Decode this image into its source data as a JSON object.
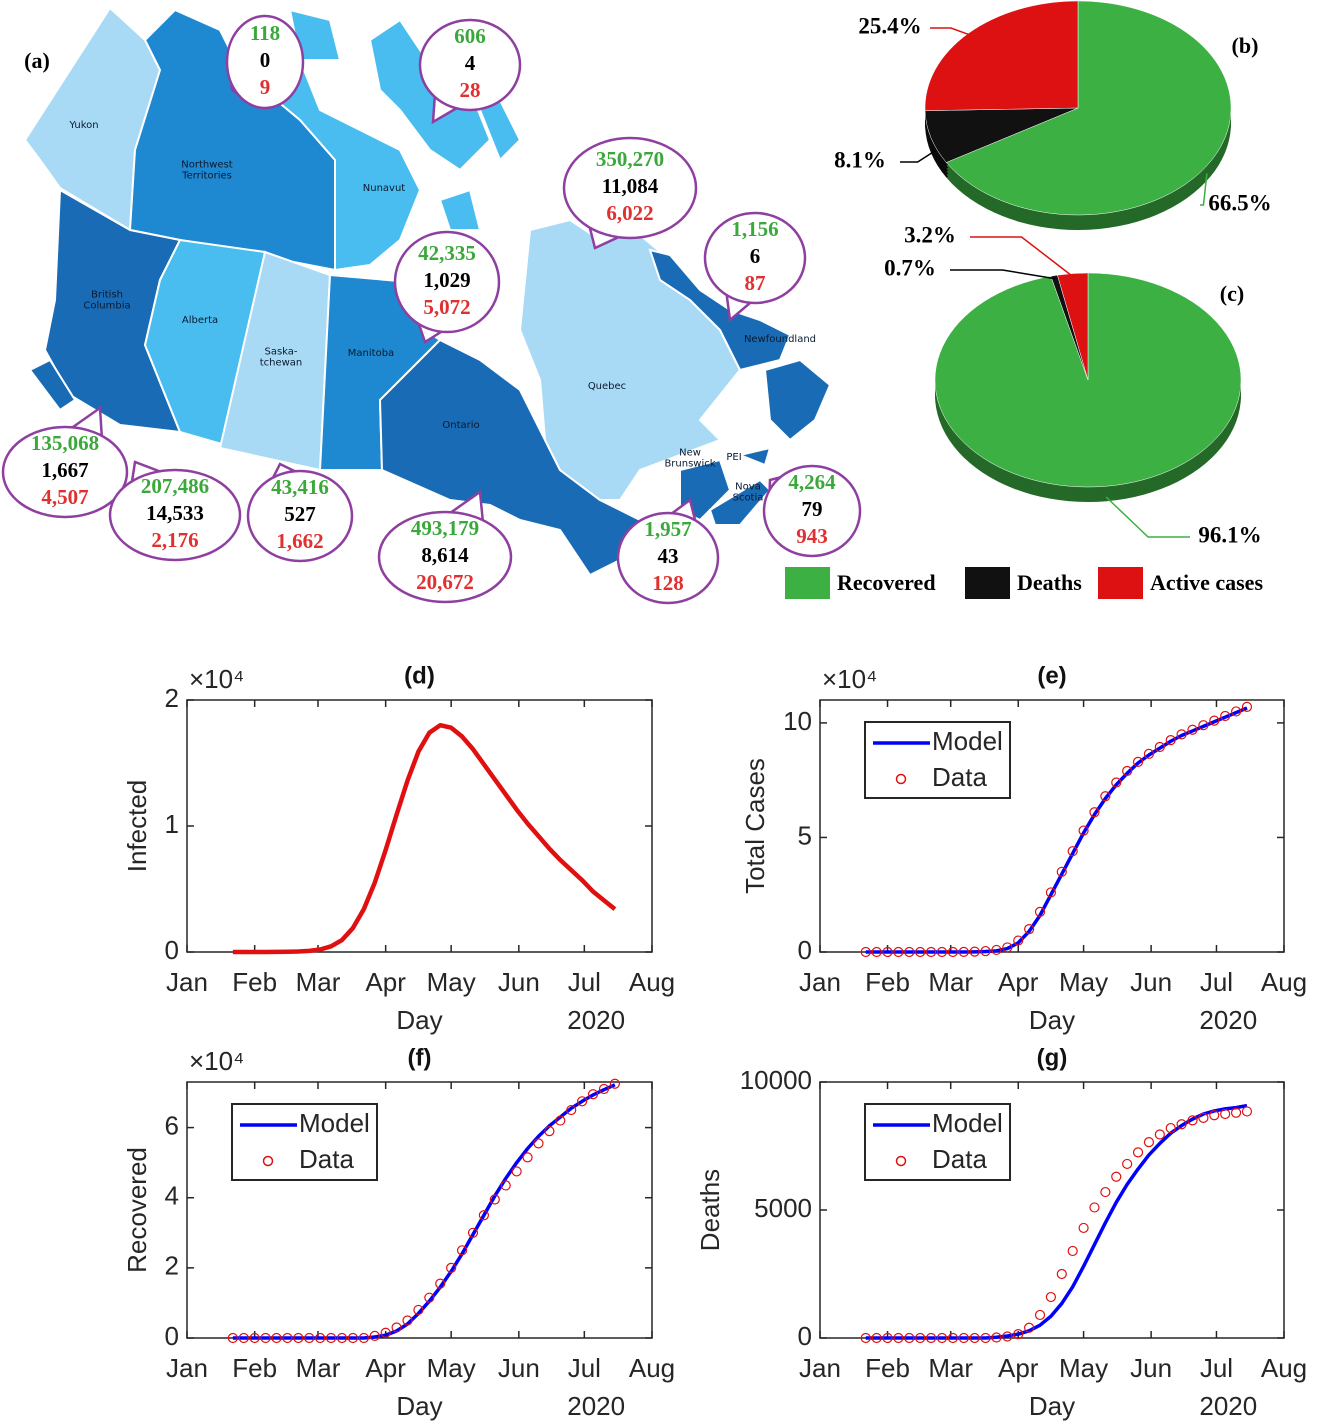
{
  "map": {
    "label": "(a)",
    "regions": [
      {
        "label": [
          "Yukon"
        ]
      },
      {
        "label": [
          "Northwest",
          "Territories"
        ]
      },
      {
        "label": [
          "Nunavut"
        ]
      },
      {
        "label": [
          "British",
          "Columbia"
        ]
      },
      {
        "label": [
          "Alberta"
        ]
      },
      {
        "label": [
          "Saska-",
          "tchewan"
        ]
      },
      {
        "label": [
          "Manitoba"
        ]
      },
      {
        "label": [
          "Ontario"
        ]
      },
      {
        "label": [
          "Quebec"
        ]
      },
      {
        "label": [
          "Newfoundland"
        ]
      },
      {
        "label": [
          "New",
          "Brunswick"
        ]
      },
      {
        "label": [
          "PEI"
        ]
      },
      {
        "label": [
          "Nova",
          "Scotia"
        ]
      }
    ],
    "callouts": [
      [
        "118",
        "0",
        "9"
      ],
      [
        "606",
        "4",
        "28"
      ],
      [
        "350,270",
        "11,084",
        "6,022"
      ],
      [
        "42,335",
        "1,029",
        "5,072"
      ],
      [
        "1,156",
        "6",
        "87"
      ],
      [
        "135,068",
        "1,667",
        "4,507"
      ],
      [
        "207,486",
        "14,533",
        "2,176"
      ],
      [
        "43,416",
        "527",
        "1,662"
      ],
      [
        "493,179",
        "8,614",
        "20,672"
      ],
      [
        "1,957",
        "43",
        "128"
      ],
      [
        "4,264",
        "79",
        "943"
      ]
    ]
  },
  "chart_data": [
    {
      "type": "pie",
      "title": "(b)",
      "categories": [
        "Recovered",
        "Deaths",
        "Active cases"
      ],
      "values": [
        66.5,
        8.1,
        25.4
      ],
      "value_labels": [
        "66.5%",
        "8.1%",
        "25.4%"
      ],
      "colors": [
        "#3cb043",
        "#111111",
        "#dd1111"
      ]
    },
    {
      "type": "pie",
      "title": "(c)",
      "values": [
        96.1,
        0.7,
        3.2
      ],
      "value_labels": [
        "96.1%",
        "0.7%",
        "3.2%"
      ],
      "colors": [
        "#3cb043",
        "#111111",
        "#dd1111"
      ]
    },
    {
      "type": "line",
      "title": "(d)",
      "x_label": "Day",
      "x_sublabel": "2020",
      "y_label": "Infected",
      "y_multiplier": "×10⁴",
      "xlim": [
        0,
        213
      ],
      "xticks": [
        {
          "value": 0,
          "label": "Jan"
        },
        {
          "value": 31,
          "label": "Feb"
        },
        {
          "value": 60,
          "label": "Mar"
        },
        {
          "value": 91,
          "label": "Apr"
        },
        {
          "value": 121,
          "label": "May"
        },
        {
          "value": 152,
          "label": "Jun"
        },
        {
          "value": 182,
          "label": "Jul"
        },
        {
          "value": 213,
          "label": "Aug"
        }
      ],
      "ylim": [
        0,
        20000
      ],
      "yticks": [
        0,
        {
          "value": 10000,
          "label": "1"
        },
        {
          "value": 20000,
          "label": "2"
        }
      ],
      "x": [
        21,
        26,
        31,
        36,
        41,
        46,
        51,
        56,
        61,
        66,
        71,
        76,
        81,
        86,
        91,
        96,
        101,
        106,
        111,
        116,
        121,
        126,
        131,
        136,
        141,
        146,
        151,
        156,
        161,
        166,
        171,
        176,
        181,
        186,
        191,
        196
      ],
      "series": [
        {
          "color": "#e01010",
          "style": "line",
          "values": [
            0,
            0,
            0,
            0,
            5,
            15,
            40,
            90,
            200,
            450,
            950,
            1900,
            3400,
            5500,
            8100,
            10900,
            13600,
            15900,
            17400,
            18000,
            17800,
            17100,
            16100,
            14900,
            13700,
            12500,
            11300,
            10200,
            9200,
            8200,
            7300,
            6500,
            5700,
            4800,
            4100,
            3400
          ]
        }
      ]
    },
    {
      "type": "line",
      "title": "(e)",
      "x_label": "Day",
      "x_sublabel": "2020",
      "y_label": "Total Cases",
      "y_multiplier": "×10⁴",
      "legend": "northwest",
      "xlim": [
        0,
        213
      ],
      "xticks": [
        {
          "value": 0,
          "label": "Jan"
        },
        {
          "value": 31,
          "label": "Feb"
        },
        {
          "value": 60,
          "label": "Mar"
        },
        {
          "value": 91,
          "label": "Apr"
        },
        {
          "value": 121,
          "label": "May"
        },
        {
          "value": 152,
          "label": "Jun"
        },
        {
          "value": 182,
          "label": "Jul"
        },
        {
          "value": 213,
          "label": "Aug"
        }
      ],
      "ylim": [
        0,
        110000
      ],
      "yticks": [
        0,
        {
          "value": 50000,
          "label": "5"
        },
        {
          "value": 100000,
          "label": "10"
        }
      ],
      "x": [
        21,
        26,
        31,
        36,
        41,
        46,
        51,
        56,
        61,
        66,
        71,
        76,
        81,
        86,
        91,
        96,
        101,
        106,
        111,
        116,
        121,
        126,
        131,
        136,
        141,
        146,
        151,
        156,
        161,
        166,
        171,
        176,
        181,
        186,
        191,
        196
      ],
      "series": [
        {
          "name": "Model",
          "color": "#0000ff",
          "style": "line",
          "values": [
            0,
            0,
            0,
            0,
            0,
            0,
            0,
            0,
            5,
            20,
            80,
            200,
            500,
            1500,
            4000,
            9000,
            16000,
            25000,
            34000,
            43000,
            52000,
            60000,
            67000,
            73000,
            78000,
            82500,
            86000,
            89000,
            92000,
            94500,
            96500,
            98500,
            100500,
            102500,
            104500,
            106500
          ]
        },
        {
          "name": "Data",
          "color": "#e01010",
          "style": "circle",
          "values": [
            0,
            0,
            0,
            0,
            0,
            0,
            0,
            0,
            10,
            40,
            150,
            400,
            900,
            2000,
            5000,
            10000,
            17500,
            26000,
            35000,
            44000,
            53000,
            61000,
            68000,
            74000,
            79000,
            83000,
            86500,
            89500,
            92500,
            95000,
            97000,
            99000,
            101000,
            103000,
            105000,
            107000
          ]
        }
      ]
    },
    {
      "type": "line",
      "title": "(f)",
      "x_label": "Day",
      "x_sublabel": "2020",
      "y_label": "Recovered",
      "y_multiplier": "×10⁴",
      "legend": "northwest",
      "xlim": [
        0,
        213
      ],
      "xticks": [
        {
          "value": 0,
          "label": "Jan"
        },
        {
          "value": 31,
          "label": "Feb"
        },
        {
          "value": 60,
          "label": "Mar"
        },
        {
          "value": 91,
          "label": "Apr"
        },
        {
          "value": 121,
          "label": "May"
        },
        {
          "value": 152,
          "label": "Jun"
        },
        {
          "value": 182,
          "label": "Jul"
        },
        {
          "value": 213,
          "label": "Aug"
        }
      ],
      "ylim": [
        0,
        73000
      ],
      "yticks": [
        0,
        {
          "value": 20000,
          "label": "2"
        },
        {
          "value": 40000,
          "label": "4"
        },
        {
          "value": 60000,
          "label": "6"
        }
      ],
      "x": [
        21,
        26,
        31,
        36,
        41,
        46,
        51,
        56,
        61,
        66,
        71,
        76,
        81,
        86,
        91,
        96,
        101,
        106,
        111,
        116,
        121,
        126,
        131,
        136,
        141,
        146,
        151,
        156,
        161,
        166,
        171,
        176,
        181,
        186,
        191,
        196
      ],
      "series": [
        {
          "name": "Model",
          "color": "#0000ff",
          "style": "line",
          "values": [
            0,
            0,
            0,
            0,
            0,
            0,
            0,
            0,
            0,
            0,
            0,
            0,
            0,
            300,
            800,
            2000,
            4000,
            7000,
            10500,
            14500,
            19000,
            24000,
            29500,
            35000,
            40500,
            45500,
            50000,
            54000,
            57500,
            60500,
            63000,
            65500,
            67500,
            69300,
            70800,
            72200
          ]
        },
        {
          "name": "Data",
          "color": "#e01010",
          "style": "circle",
          "values": [
            0,
            0,
            0,
            0,
            0,
            0,
            0,
            0,
            0,
            0,
            0,
            0,
            0,
            600,
            1500,
            3000,
            5000,
            8000,
            11500,
            15500,
            20000,
            25000,
            30000,
            35000,
            39500,
            43500,
            47500,
            51500,
            55500,
            59000,
            62000,
            65000,
            67500,
            69500,
            71000,
            72500
          ]
        }
      ]
    },
    {
      "type": "line",
      "title": "(g)",
      "x_label": "Day",
      "x_sublabel": "2020",
      "y_label": "Deaths",
      "legend": "northwest",
      "xlim": [
        0,
        213
      ],
      "xticks": [
        {
          "value": 0,
          "label": "Jan"
        },
        {
          "value": 31,
          "label": "Feb"
        },
        {
          "value": 60,
          "label": "Mar"
        },
        {
          "value": 91,
          "label": "Apr"
        },
        {
          "value": 121,
          "label": "May"
        },
        {
          "value": 152,
          "label": "Jun"
        },
        {
          "value": 182,
          "label": "Jul"
        },
        {
          "value": 213,
          "label": "Aug"
        }
      ],
      "ylim": [
        0,
        10000
      ],
      "yticks": [
        0,
        5000,
        10000
      ],
      "x": [
        21,
        26,
        31,
        36,
        41,
        46,
        51,
        56,
        61,
        66,
        71,
        76,
        81,
        86,
        91,
        96,
        101,
        106,
        111,
        116,
        121,
        126,
        131,
        136,
        141,
        146,
        151,
        156,
        161,
        166,
        171,
        176,
        181,
        186,
        191,
        196
      ],
      "series": [
        {
          "name": "Model",
          "color": "#0000ff",
          "style": "line",
          "values": [
            0,
            0,
            0,
            0,
            0,
            0,
            0,
            0,
            0,
            0,
            0,
            0,
            30,
            80,
            150,
            280,
            500,
            850,
            1350,
            2000,
            2800,
            3650,
            4500,
            5300,
            6000,
            6600,
            7150,
            7600,
            8000,
            8300,
            8550,
            8750,
            8870,
            8950,
            9000,
            9080
          ]
        },
        {
          "name": "Data",
          "color": "#e01010",
          "style": "circle",
          "values": [
            0,
            0,
            0,
            0,
            0,
            0,
            0,
            0,
            0,
            0,
            0,
            0,
            20,
            60,
            150,
            400,
            900,
            1600,
            2500,
            3400,
            4300,
            5100,
            5700,
            6300,
            6800,
            7250,
            7650,
            7950,
            8200,
            8350,
            8500,
            8600,
            8700,
            8750,
            8800,
            8850
          ]
        }
      ]
    }
  ]
}
